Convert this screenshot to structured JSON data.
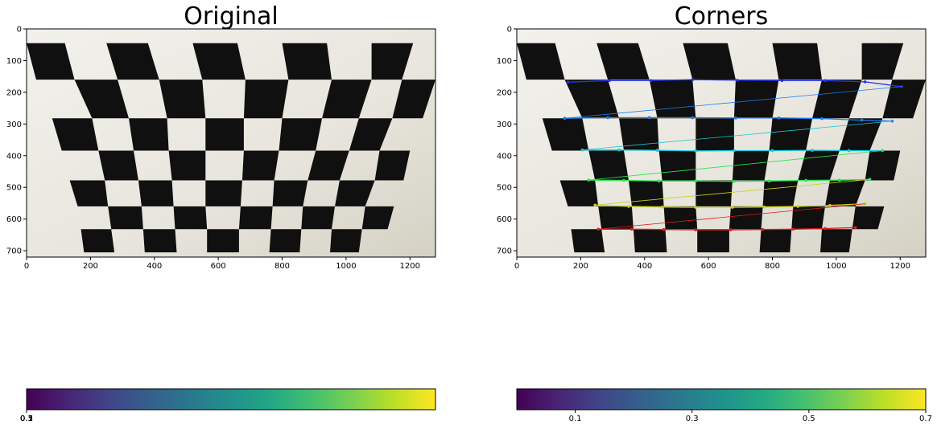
{
  "figure": {
    "panels": [
      {
        "id": "left",
        "title": "Original"
      },
      {
        "id": "right",
        "title": "Corners"
      }
    ]
  },
  "chart_data": [
    {
      "type": "image",
      "title": "Original",
      "xlabel": "",
      "ylabel": "",
      "xlim": [
        0,
        1280
      ],
      "ylim": [
        720,
        0
      ],
      "xticks": [
        "0",
        "200",
        "400",
        "600",
        "800",
        "1000",
        "1200"
      ],
      "yticks": [
        "0",
        "100",
        "200",
        "300",
        "400",
        "500",
        "600",
        "700"
      ],
      "image": "photo of a distorted checkerboard calibration pattern on a wall",
      "colorbar": {
        "colormap": "viridis",
        "ticks": [
          "0.1",
          "0.3",
          "0.5",
          "0.7"
        ],
        "note_visible": "tick labels overlap at the left edge"
      }
    },
    {
      "type": "image",
      "title": "Corners",
      "xlabel": "",
      "ylabel": "",
      "xlim": [
        0,
        1280
      ],
      "ylim": [
        720,
        0
      ],
      "xticks": [
        "0",
        "200",
        "400",
        "600",
        "800",
        "1000",
        "1200"
      ],
      "yticks": [
        "0",
        "100",
        "200",
        "300",
        "400",
        "500",
        "600",
        "700"
      ],
      "image": "same checkerboard photo with detected inner corners drawn",
      "corner_rows": [
        {
          "color": "#2233ee",
          "points": [
            [
              160,
              168
            ],
            [
              290,
              163
            ],
            [
              420,
              163
            ],
            [
              550,
              160
            ],
            [
              690,
              162
            ],
            [
              830,
              163
            ],
            [
              965,
              163
            ],
            [
              1090,
              167
            ],
            [
              1205,
              182
            ]
          ]
        },
        {
          "color": "#1a7cf2",
          "points": [
            [
              150,
              282
            ],
            [
              285,
              280
            ],
            [
              415,
              280
            ],
            [
              550,
              280
            ],
            [
              685,
              281
            ],
            [
              820,
              281
            ],
            [
              955,
              283
            ],
            [
              1080,
              288
            ],
            [
              1175,
              291
            ]
          ]
        },
        {
          "color": "#16c8d6",
          "points": [
            [
              205,
              382
            ],
            [
              320,
              382
            ],
            [
              440,
              383
            ],
            [
              560,
              385
            ],
            [
              680,
              384
            ],
            [
              800,
              384
            ],
            [
              925,
              383
            ],
            [
              1040,
              384
            ],
            [
              1145,
              384
            ]
          ]
        },
        {
          "color": "#22e64a",
          "points": [
            [
              225,
              477
            ],
            [
              335,
              478
            ],
            [
              445,
              480
            ],
            [
              560,
              480
            ],
            [
              680,
              481
            ],
            [
              790,
              480
            ],
            [
              905,
              478
            ],
            [
              1010,
              477
            ],
            [
              1105,
              475
            ]
          ]
        },
        {
          "color": "#c8d21a",
          "points": [
            [
              245,
              556
            ],
            [
              350,
              560
            ],
            [
              455,
              562
            ],
            [
              560,
              563
            ],
            [
              675,
              563
            ],
            [
              775,
              562
            ],
            [
              880,
              560
            ],
            [
              980,
              557
            ],
            [
              1090,
              552
            ]
          ]
        },
        {
          "color": "#e11a1a",
          "points": [
            [
              255,
              632
            ],
            [
              360,
              632
            ],
            [
              460,
              633
            ],
            [
              560,
              634
            ],
            [
              670,
              634
            ],
            [
              770,
              633
            ],
            [
              865,
              632
            ],
            [
              965,
              630
            ],
            [
              1060,
              627
            ]
          ]
        }
      ],
      "colorbar": {
        "colormap": "viridis",
        "ticks": [
          "0.1",
          "0.3",
          "0.5",
          "0.7"
        ]
      }
    }
  ]
}
